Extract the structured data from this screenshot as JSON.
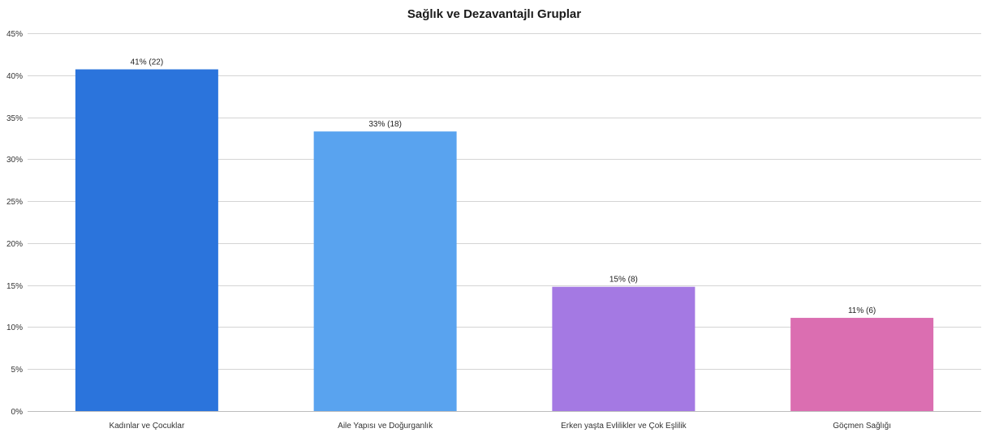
{
  "chart_data": {
    "type": "bar",
    "title": "Sağlık ve Dezavantajlı Gruplar",
    "xlabel": "",
    "ylabel": "",
    "categories": [
      "Kadınlar ve Çocuklar",
      "Aile Yapısı ve Doğurganlık",
      "Erken yaşta Evlilikler ve Çok Eşlilik",
      "Göçmen Sağlığı"
    ],
    "values": [
      40.7,
      33.3,
      14.8,
      11.1
    ],
    "data_labels": [
      "41% (22)",
      "33% (18)",
      "15% (8)",
      "11% (6)"
    ],
    "counts": [
      22,
      18,
      8,
      6
    ],
    "colors": [
      "#2b74dc",
      "#59a3ef",
      "#a479e3",
      "#db6eb1"
    ],
    "ylim": [
      0,
      45
    ],
    "yticks": [
      0,
      5,
      10,
      15,
      20,
      25,
      30,
      35,
      40,
      45
    ],
    "ytick_labels": [
      "0%",
      "5%",
      "10%",
      "15%",
      "20%",
      "25%",
      "30%",
      "35%",
      "40%",
      "45%"
    ],
    "grid": true,
    "legend": "none"
  }
}
